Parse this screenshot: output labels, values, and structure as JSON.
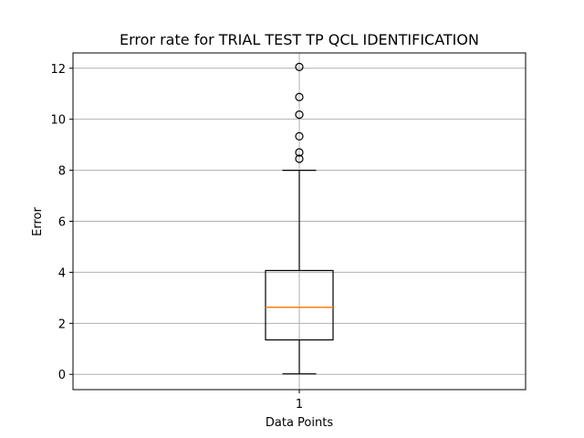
{
  "chart_data": {
    "type": "box",
    "title": "Error rate for TRIAL TEST TP QCL IDENTIFICATION",
    "xlabel": "Data Points",
    "ylabel": "Error",
    "categories": [
      "1"
    ],
    "ylim": [
      -0.6,
      12.6
    ],
    "yticks": [
      0,
      2,
      4,
      6,
      8,
      10,
      12
    ],
    "grid": true,
    "boxes": [
      {
        "name": "1",
        "whisker_low": 0.02,
        "q1": 1.35,
        "median": 2.63,
        "q3": 4.07,
        "whisker_high": 8.0,
        "fliers": [
          8.45,
          8.7,
          9.33,
          10.18,
          10.87,
          12.05
        ]
      }
    ],
    "colors": {
      "median": "#ff7f0e",
      "box": "#000000",
      "grid": "#b0b0b0"
    }
  }
}
